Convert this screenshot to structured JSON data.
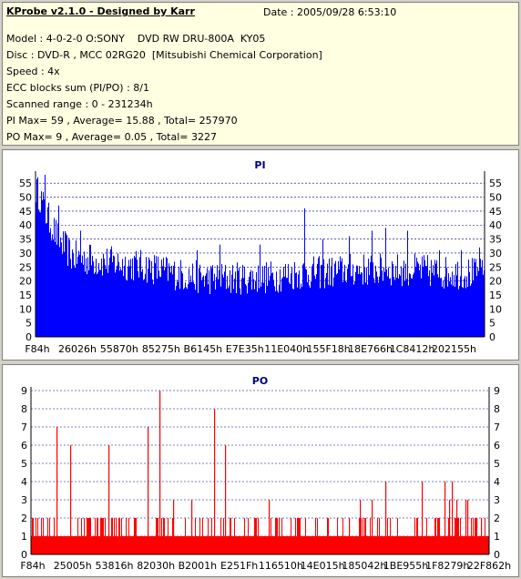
{
  "header": {
    "title": "KProbe v2.1.0 - Designed by Karr",
    "date": "Date : 2005/09/28 6:53:10",
    "lines": [
      "Model : 4-0-2-0 O:SONY    DVD RW DRU-800A  KY05",
      "Disc : DVD-R , MCC 02RG20  [Mitsubishi Chemical Corporation]",
      "Speed : 4x",
      "ECC blocks sum (PI/PO) : 8/1",
      "Scanned range : 0 - 231234h",
      "PI Max= 59 , Average= 15.88 , Total= 257970",
      "PO Max= 9 , Average= 0.05 , Total= 3227"
    ]
  },
  "colors": {
    "pi_bar": "#0000ff",
    "po_bar": "#ff0000",
    "title_text": "#000080",
    "grid": "#000080",
    "panel_bg": "#ffffff",
    "info_bg": "#ffffe1"
  },
  "chart_data": [
    {
      "type": "bar",
      "title": "PI",
      "ylim": [
        0,
        58
      ],
      "yticks": [
        0,
        5,
        10,
        15,
        20,
        25,
        30,
        35,
        40,
        45,
        50,
        55
      ],
      "xtick_labels": [
        "F84h",
        "26026h",
        "55870h",
        "85275h",
        "B6145h",
        "E7E35h",
        "11E040h",
        "155F18h",
        "18E766h",
        "1C8412h",
        "202155h"
      ],
      "grid": "dashed horizontal",
      "profile": [
        [
          0,
          53
        ],
        [
          0.01,
          50
        ],
        [
          0.02,
          45
        ],
        [
          0.035,
          40
        ],
        [
          0.05,
          35
        ],
        [
          0.065,
          32
        ],
        [
          0.08,
          29
        ],
        [
          0.1,
          28
        ],
        [
          0.15,
          27
        ],
        [
          0.2,
          26
        ],
        [
          0.25,
          25
        ],
        [
          0.3,
          23
        ],
        [
          0.33,
          22
        ],
        [
          0.38,
          21
        ],
        [
          0.45,
          21
        ],
        [
          0.5,
          21
        ],
        [
          0.55,
          22
        ],
        [
          0.6,
          23
        ],
        [
          0.65,
          23
        ],
        [
          0.7,
          24
        ],
        [
          0.75,
          24
        ],
        [
          0.8,
          24
        ],
        [
          0.85,
          24
        ],
        [
          0.9,
          23
        ],
        [
          0.95,
          23
        ],
        [
          1.0,
          22
        ]
      ],
      "noise": 6,
      "spikes": [
        [
          0.02,
          58
        ],
        [
          0.05,
          47
        ],
        [
          0.1,
          38
        ],
        [
          0.12,
          33
        ],
        [
          0.36,
          31
        ],
        [
          0.41,
          33
        ],
        [
          0.5,
          33
        ],
        [
          0.6,
          46
        ],
        [
          0.64,
          35
        ],
        [
          0.7,
          36
        ],
        [
          0.75,
          38
        ],
        [
          0.78,
          39
        ],
        [
          0.83,
          38
        ],
        [
          0.9,
          31
        ],
        [
          0.95,
          31
        ],
        [
          0.99,
          32
        ]
      ]
    },
    {
      "type": "bar",
      "title": "PO",
      "ylim": [
        0,
        9
      ],
      "yticks": [
        0,
        1,
        2,
        3,
        4,
        5,
        6,
        7,
        8,
        9
      ],
      "xtick_labels": [
        "F84h",
        "25005h",
        "53816h",
        "82030h",
        "B2001h",
        "E251Fh",
        "116510h",
        "14E015h",
        "185042h",
        "1BE955h",
        "1F8279h",
        "22F862h"
      ],
      "grid": "dashed horizontal",
      "spikes": [
        [
          0.055,
          7
        ],
        [
          0.085,
          6
        ],
        [
          0.17,
          6
        ],
        [
          0.255,
          7
        ],
        [
          0.28,
          9
        ],
        [
          0.31,
          3
        ],
        [
          0.35,
          3
        ],
        [
          0.4,
          8
        ],
        [
          0.425,
          6
        ],
        [
          0.52,
          3
        ],
        [
          0.585,
          2
        ],
        [
          0.695,
          2
        ],
        [
          0.72,
          3
        ],
        [
          0.73,
          2
        ],
        [
          0.745,
          3
        ],
        [
          0.775,
          4
        ],
        [
          0.855,
          4
        ],
        [
          0.905,
          4
        ],
        [
          0.915,
          3
        ],
        [
          0.92,
          4
        ],
        [
          0.93,
          3
        ],
        [
          0.95,
          3
        ],
        [
          0.955,
          3
        ],
        [
          0.975,
          2
        ],
        [
          0.985,
          2
        ]
      ]
    }
  ]
}
